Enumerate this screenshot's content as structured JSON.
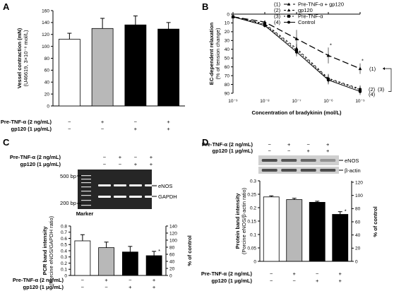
{
  "colors": {
    "white": "#ffffff",
    "gray": "#b8b8b8",
    "black": "#000000",
    "gel_bg": "#262626",
    "blot_bg": "#cfcfcf"
  },
  "treatment_rows": {
    "tnf_label": "Pre-TNF-α (2 ng/mL)",
    "gp120_label": "gp120 (1 μg/mL)",
    "tnf_signs": [
      "−",
      "+",
      "−",
      "+"
    ],
    "gp120_signs": [
      "−",
      "−",
      "+",
      "+"
    ]
  },
  "chart_data": [
    {
      "panel": "A",
      "type": "bar",
      "ylabel": "Vessel contraction (mN)",
      "ylabel_sub": "(U46619, 3×10⁻⁸ mol/L)",
      "ylim": [
        0,
        160
      ],
      "yticks": [
        0,
        20,
        40,
        60,
        80,
        100,
        120,
        140,
        160
      ],
      "categories": [
        "Control",
        "Pre-TNF-α",
        "gp120",
        "Pre-TNF-α + gp120"
      ],
      "values": [
        112,
        130,
        136,
        129
      ],
      "errors": [
        10,
        17,
        15,
        11
      ],
      "bar_colors": [
        "#ffffff",
        "#b8b8b8",
        "#000000",
        "#000000"
      ]
    },
    {
      "panel": "B",
      "type": "line",
      "ylabel": "EC-dependent relaxation",
      "ylabel_sub": "(% of tension change)",
      "xlabel": "Concentration of bradykinin (mol/L)",
      "xscale": "log",
      "xticks": [
        "10⁻⁹",
        "10⁻⁸",
        "10⁻⁷",
        "10⁻⁶",
        "10⁻⁵"
      ],
      "ylim": [
        0,
        90
      ],
      "yinverted": true,
      "yticks": [
        0,
        10,
        20,
        30,
        40,
        50,
        60,
        70,
        80,
        90
      ],
      "x": [
        1e-09,
        1e-08,
        1e-07,
        1e-06,
        1e-05
      ],
      "series": [
        {
          "name": "Pre-TNF-α + gp120",
          "index": "(1)",
          "values": [
            3,
            9,
            28,
            47,
            62
          ],
          "errors": [
            2,
            2,
            10,
            9,
            6
          ],
          "dash": "9,4",
          "marker": "triangle"
        },
        {
          "name": "gp120",
          "index": "(2)",
          "values": [
            3,
            11,
            39,
            73,
            85
          ],
          "errors": [
            2,
            2,
            5,
            5,
            4
          ],
          "dash": "3,3",
          "marker": "triangle"
        },
        {
          "name": "Pre-TNF-α",
          "index": "(3)",
          "values": [
            3,
            12,
            41,
            74,
            86
          ],
          "errors": [
            2,
            2,
            5,
            5,
            4
          ],
          "dash": "2,2",
          "marker": "square"
        },
        {
          "name": "Control",
          "index": "(4)",
          "values": [
            3,
            13,
            43,
            75,
            88
          ],
          "errors": [
            2,
            2,
            5,
            5,
            4
          ],
          "dash": "",
          "marker": "circle"
        }
      ],
      "end_labels": [
        "(1)",
        "(2)",
        "(3)",
        "(4)"
      ],
      "star": "*"
    },
    {
      "panel": "C",
      "type": "bar",
      "ylabel": "PCR band intensity",
      "ylabel_sub": "(Porcine eNOS/GAPDH ratio)",
      "y2label": "% of control",
      "ylim": [
        0,
        0.8
      ],
      "yticks": [
        0,
        0.1,
        0.2,
        0.3,
        0.4,
        0.5,
        0.6,
        0.7,
        0.8
      ],
      "y2ticks": [
        0,
        20,
        40,
        60,
        80,
        100,
        120,
        140
      ],
      "categories": [
        "Control",
        "Pre-TNF-α",
        "gp120",
        "Pre-TNF-α + gp120"
      ],
      "values": [
        0.56,
        0.45,
        0.38,
        0.32
      ],
      "errors": [
        0.1,
        0.09,
        0.09,
        0.07
      ],
      "bar_colors": [
        "#ffffff",
        "#b8b8b8",
        "#000000",
        "#000000"
      ],
      "star": "*"
    },
    {
      "panel": "D",
      "type": "bar",
      "ylabel": "Protein band intensity",
      "ylabel_sub": "(Porcine eNOS/β-actin ratio)",
      "y2label": "% of control",
      "ylim": [
        0,
        0.3
      ],
      "yticks": [
        0,
        0.05,
        0.1,
        0.15,
        0.2,
        0.25,
        0.3
      ],
      "y2ticks": [
        0,
        20,
        40,
        60,
        80,
        100,
        120
      ],
      "categories": [
        "Control",
        "Pre-TNF-α",
        "gp120",
        "Pre-TNF-α + gp120"
      ],
      "values": [
        0.24,
        0.23,
        0.22,
        0.175
      ],
      "errors": [
        0.004,
        0.005,
        0.004,
        0.01
      ],
      "bar_colors": [
        "#ffffff",
        "#b8b8b8",
        "#000000",
        "#000000"
      ],
      "star": "*"
    }
  ],
  "gel": {
    "ladder_top": "500 bp",
    "ladder_bottom": "200 bp",
    "band_top": "eNOS",
    "band_bottom": "GAPDH",
    "marker": "Marker"
  },
  "blot": {
    "band_top": "eNOS",
    "band_bottom": "β-actin"
  },
  "panels": {
    "a": "A",
    "b": "B",
    "c": "C",
    "d": "D"
  }
}
